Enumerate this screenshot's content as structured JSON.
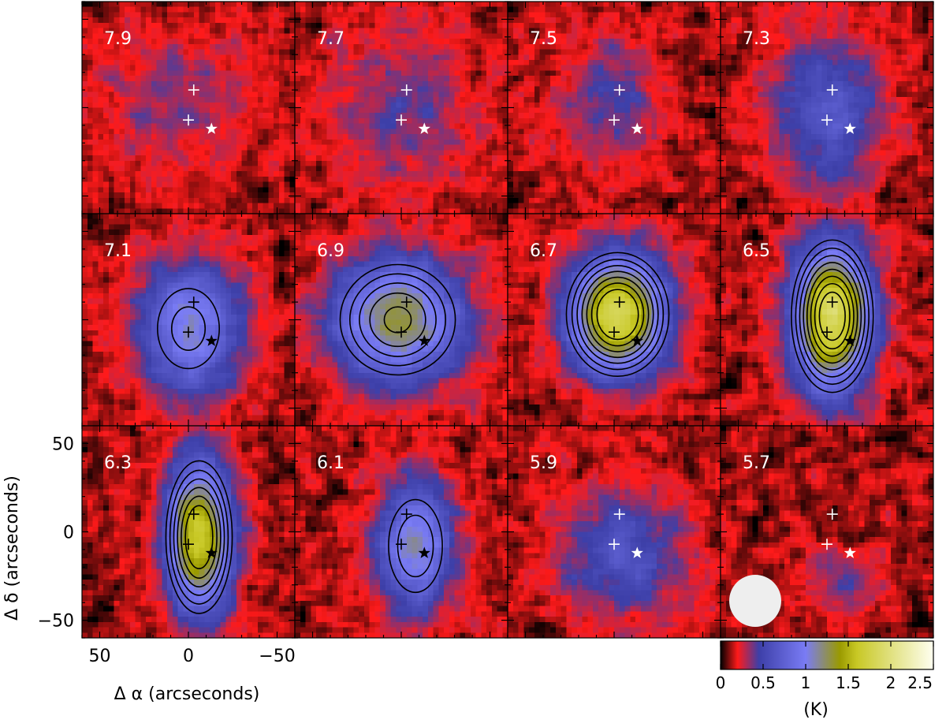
{
  "chart_data": {
    "type": "heatmap",
    "description_kind": "channel-map grid",
    "grid": {
      "rows": 3,
      "cols": 4
    },
    "panels": [
      {
        "label": "7.9",
        "peak": 0.25,
        "cx": 5,
        "cy": 5,
        "sx": 30,
        "sy": 30,
        "contours": [],
        "marker_color": "white"
      },
      {
        "label": "7.7",
        "peak": 0.3,
        "cx": 0,
        "cy": 0,
        "sx": 30,
        "sy": 30,
        "contours": [],
        "marker_color": "white"
      },
      {
        "label": "7.5",
        "peak": 0.35,
        "cx": 3,
        "cy": 5,
        "sx": 20,
        "sy": 25,
        "contours": [],
        "marker_color": "white"
      },
      {
        "label": "7.3",
        "peak": 0.55,
        "cx": 0,
        "cy": -2,
        "sx": 22,
        "sy": 30,
        "contours": [],
        "marker_color": "white"
      },
      {
        "label": "7.1",
        "peak": 0.95,
        "cx": 0,
        "cy": -5,
        "sx": 20,
        "sy": 26,
        "contours": [
          0.65,
          0.85
        ],
        "marker_color": "black"
      },
      {
        "label": "6.9",
        "peak": 1.2,
        "cx": 2,
        "cy": 0,
        "sx": 26,
        "sy": 25,
        "contours": [
          0.55,
          0.7,
          0.85,
          1.0,
          1.15
        ],
        "marker_color": "black"
      },
      {
        "label": "6.7",
        "peak": 1.75,
        "cx": -2,
        "cy": 3,
        "sx": 19,
        "sy": 23,
        "contours": [
          0.55,
          0.7,
          0.85,
          1.0,
          1.15,
          1.3,
          1.45
        ],
        "marker_color": "black"
      },
      {
        "label": "6.5",
        "peak": 1.8,
        "cx": -3,
        "cy": 2,
        "sx": 15,
        "sy": 28,
        "contours": [
          0.55,
          0.7,
          0.85,
          1.0,
          1.15,
          1.3,
          1.45,
          1.6
        ],
        "marker_color": "black"
      },
      {
        "label": "6.3",
        "peak": 1.55,
        "cx": -6,
        "cy": -3,
        "sx": 13,
        "sy": 30,
        "contours": [
          0.55,
          0.7,
          0.85,
          1.0,
          1.15,
          1.3
        ],
        "marker_color": "black"
      },
      {
        "label": "6.1",
        "peak": 1.0,
        "cx": -8,
        "cy": -8,
        "sx": 15,
        "sy": 26,
        "contours": [
          0.6,
          0.8
        ],
        "marker_color": "black"
      },
      {
        "label": "5.9",
        "peak": 0.5,
        "cx": -6,
        "cy": -12,
        "sx": 25,
        "sy": 25,
        "contours": [],
        "marker_color": "white"
      },
      {
        "label": "5.7",
        "peak": 0.3,
        "cx": -10,
        "cy": -30,
        "sx": 15,
        "sy": 12,
        "contours": [],
        "marker_color": "white"
      }
    ],
    "markers": {
      "crosses": [
        {
          "x": -3,
          "y": 10
        },
        {
          "x": 0,
          "y": -7
        }
      ],
      "star": {
        "x": -13,
        "y": -12
      }
    },
    "x_range": [
      60,
      -60
    ],
    "y_range": [
      -60,
      60
    ],
    "x_ticks": [
      "50",
      "0",
      "−50"
    ],
    "x_tick_values": [
      50,
      0,
      -50
    ],
    "y_ticks": [
      "50",
      "0",
      "−50"
    ],
    "y_tick_values": [
      50,
      0,
      -50
    ],
    "xlabel": "Δ α  (arcseconds)",
    "ylabel": "Δ δ  (arcseconds)",
    "colorbar": {
      "range": [
        0,
        2.5
      ],
      "ticks": [
        "0",
        "0.5",
        "1",
        "1.5",
        "2",
        "2.5"
      ],
      "tick_values": [
        0,
        0.5,
        1,
        1.5,
        2,
        2.5
      ],
      "label": "(K)",
      "stops": [
        {
          "v": 0.0,
          "color": "#000000"
        },
        {
          "v": 0.2,
          "color": "#ff1a1a"
        },
        {
          "v": 0.45,
          "color": "#3d3fa8"
        },
        {
          "v": 1.0,
          "color": "#7a7cf5"
        },
        {
          "v": 1.4,
          "color": "#9a9a00"
        },
        {
          "v": 1.6,
          "color": "#c8c825"
        },
        {
          "v": 2.5,
          "color": "#fffff0"
        }
      ]
    },
    "beam": {
      "shape": "circle",
      "color": "#eeeeee"
    }
  }
}
